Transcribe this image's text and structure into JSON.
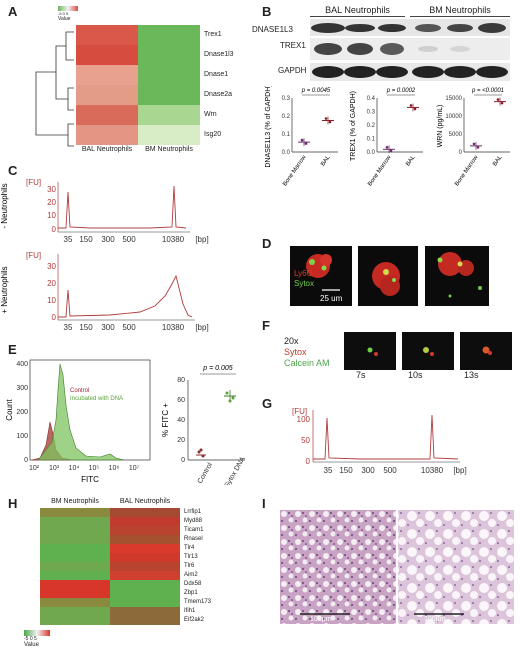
{
  "panels": {
    "A": "A",
    "B": "B",
    "C": "C",
    "D": "D",
    "E": "E",
    "F": "F",
    "G": "G",
    "H": "H",
    "I": "I"
  },
  "panelA": {
    "legend_label": "Value",
    "legend_ticks": "-5 0 5",
    "genes": [
      "Trex1",
      "Dnase1l3",
      "Dnase1",
      "Dnase2a",
      "Wrn",
      "Isg20"
    ],
    "columns": [
      "BAL Neutrophils",
      "BM Neutrophils"
    ],
    "colors": [
      [
        "#d9584a",
        "#6bb85a"
      ],
      [
        "#d64c3f",
        "#6bb85a"
      ],
      [
        "#e7a18e",
        "#6bb85a"
      ],
      [
        "#e39c88",
        "#6bb85a"
      ],
      [
        "#d86b5a",
        "#a9d690"
      ],
      [
        "#e39684",
        "#d8ecc6"
      ]
    ]
  },
  "panelB": {
    "header_bal": "BAL Neutrophils",
    "header_bm": "BM Neutrophils",
    "blot_labels": [
      "DNASE1L3",
      "TREX1",
      "GAPDH"
    ],
    "plots": [
      {
        "ylabel": "DNASE1L3 (% of GAPDH)",
        "p": "p = 0.0045",
        "yticks": [
          "0.0",
          "0.1",
          "0.2",
          "0.3"
        ],
        "xcats": [
          "Bone Marrow",
          "BAL"
        ],
        "values": [
          0.055,
          0.175
        ]
      },
      {
        "ylabel": "TREX1 (% of GAPDH)",
        "p": "p = 0.0002",
        "yticks": [
          "0.0",
          "0.1",
          "0.2",
          "0.3",
          "0.4"
        ],
        "xcats": [
          "Bone Marrow",
          "BAL"
        ],
        "values": [
          0.02,
          0.33
        ]
      },
      {
        "ylabel": "WRN (pg/mL)",
        "p": "p = <0.0001",
        "yticks": [
          "0",
          "5000",
          "10000",
          "15000"
        ],
        "xcats": [
          "Bone Marrow",
          "BAL"
        ],
        "values": [
          1700,
          14000
        ]
      }
    ]
  },
  "panelC": {
    "fu": "[FU]",
    "bp": "[bp]",
    "top_label": "- Neutrophils",
    "bottom_label": "+ Neutrophils",
    "yticks": [
      "0",
      "10",
      "20",
      "30"
    ],
    "xticks": [
      "35",
      "150",
      "300",
      "500",
      "10380"
    ]
  },
  "panelD": {
    "ly6g": "Ly6G",
    "sytox": "Sytox",
    "scale": "25 um"
  },
  "panelE": {
    "count": "Count",
    "fitc": "FITC",
    "control": "Control",
    "incubated": "Incubated with DNA",
    "yticks": [
      "0",
      "100",
      "200",
      "300",
      "400"
    ],
    "xticks": [
      "10²",
      "10³",
      "10⁴",
      "10⁵",
      "10⁶",
      "10⁷"
    ],
    "dot_ylabel": "% FITC +",
    "dot_p": "p = 0.005",
    "dot_yticks": [
      "0",
      "20",
      "40",
      "60",
      "80"
    ],
    "dot_xcats": [
      "Control",
      "Sytox DNA"
    ],
    "dot_values": [
      5,
      64
    ]
  },
  "panelF": {
    "mag": "20x",
    "sytox": "Sytox",
    "calcein": "Calcein AM",
    "times": [
      "7s",
      "10s",
      "13s"
    ]
  },
  "panelG": {
    "fu": "[FU]",
    "bp": "[bp]",
    "yticks": [
      "0",
      "50",
      "100"
    ],
    "xticks": [
      "35",
      "150",
      "300",
      "500",
      "10380"
    ]
  },
  "panelH": {
    "columns": [
      "BM Neutrophils",
      "BAL Neutrophils"
    ],
    "genes": [
      "Lrrfip1",
      "Myd88",
      "Ticam1",
      "Rnasel",
      "Tlr4",
      "Tlr13",
      "Tlr6",
      "Aim2",
      "Ddx58",
      "Zbp1",
      "Tmem173",
      "Ifih1",
      "Eif2ak2"
    ],
    "colors": [
      [
        "#8a8a3f",
        "#a44a30"
      ],
      [
        "#6fa84f",
        "#c03b2e"
      ],
      [
        "#6fa84f",
        "#b8442f"
      ],
      [
        "#6fa84f",
        "#a5502f"
      ],
      [
        "#5fb04f",
        "#d93a2c"
      ],
      [
        "#5fb04f",
        "#cf3a2c"
      ],
      [
        "#6fa84f",
        "#b8442f"
      ],
      [
        "#5fb04f",
        "#d0402e"
      ],
      [
        "#d8362a",
        "#5fb04f"
      ],
      [
        "#d8362a",
        "#5fb04f"
      ],
      [
        "#8a8a3f",
        "#5fb04f"
      ],
      [
        "#6fa84f",
        "#8c6a3a"
      ],
      [
        "#6fa84f",
        "#8c6a3a"
      ]
    ],
    "legend_ticks": "-5 0 5",
    "legend_label": "Value"
  },
  "panelI": {
    "scale_left": "100μm",
    "scale_right": "100μm"
  },
  "colors": {
    "red": "#c0392b",
    "green": "#4ca64a",
    "trace": "#b23b3b"
  }
}
